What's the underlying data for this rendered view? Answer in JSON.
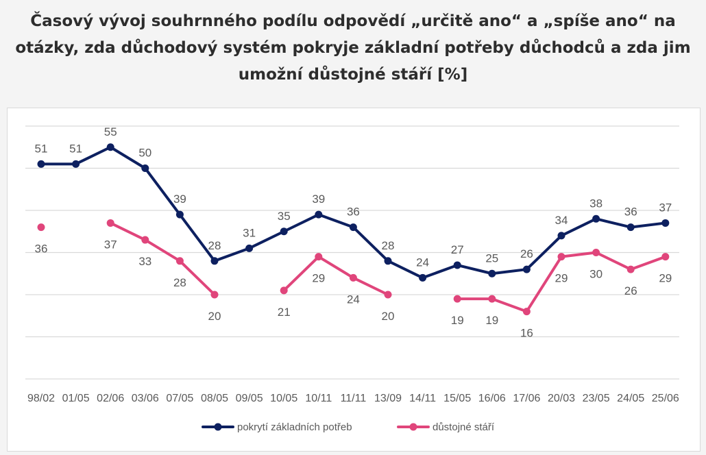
{
  "title": "Časový vývoj souhrnného podílu odpovědí „určitě ano“ a „spíše ano“ na otázky, zda důchodový systém pokryje základní potřeby důchodců a zda jim umožní důstojné stáří [%]",
  "colors": {
    "navy": "#0d2060",
    "pink": "#e0457b",
    "grid": "#d9d9d9"
  },
  "chart_data": {
    "type": "line",
    "categories": [
      "98/02",
      "01/05",
      "02/06",
      "03/06",
      "07/05",
      "08/05",
      "09/05",
      "10/05",
      "10/11",
      "11/11",
      "13/09",
      "14/11",
      "15/05",
      "16/06",
      "17/06",
      "20/03",
      "23/05",
      "24/05",
      "25/06"
    ],
    "ylim": [
      0,
      60
    ],
    "grid": true,
    "legend_position": "bottom",
    "series": [
      {
        "name": "pokrytí základních potřeb",
        "color": "#0d2060",
        "values": [
          51,
          51,
          55,
          50,
          39,
          28,
          31,
          35,
          39,
          36,
          28,
          24,
          27,
          25,
          26,
          34,
          38,
          36,
          37
        ],
        "labels": [
          "51",
          "51",
          "55",
          "50",
          "39",
          "28",
          "31",
          "35",
          "39",
          "36",
          "28",
          "24",
          "27",
          "25",
          "26",
          "34",
          "38",
          "36",
          "37"
        ],
        "label_position": "above"
      },
      {
        "name": "důstojné stáří",
        "color": "#e0457b",
        "values": [
          36,
          null,
          37,
          33,
          28,
          20,
          null,
          21,
          29,
          24,
          20,
          null,
          19,
          19,
          16,
          29,
          30,
          26,
          29
        ],
        "labels": [
          "36",
          null,
          "37",
          "33",
          "28",
          "20",
          null,
          "21",
          "29",
          "24",
          "20",
          null,
          "19",
          "19",
          "16",
          "29",
          "30",
          "26",
          "29"
        ],
        "label_position": "below"
      }
    ]
  }
}
